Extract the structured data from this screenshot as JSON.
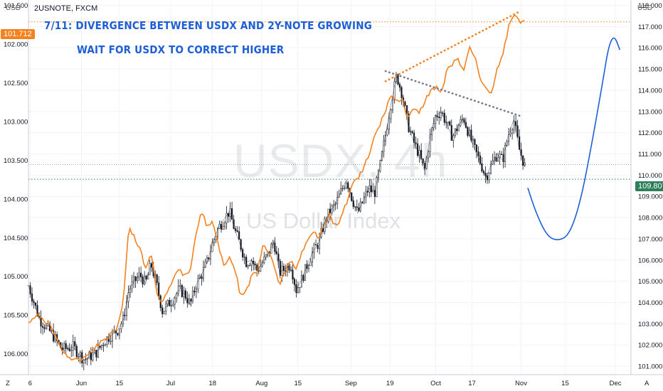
{
  "chart_data": {
    "type": "line",
    "symbol": "2USNOTE, FXCM",
    "watermark_main": "USDX, 4h",
    "watermark_sub": "US Dollar Index",
    "annotation_line1": "7/11: DIVERGENCE BETWEEN USDX AND 2Y-NOTE GROWING",
    "annotation_line2": "WAIT FOR USDX TO CORRECT HIGHER",
    "left_axis": {
      "unit": "USD",
      "inverted": true,
      "range": [
        101.43,
        106.27
      ],
      "ticks": [
        "101.500",
        "102.000",
        "102.500",
        "103.000",
        "103.500",
        "104.000",
        "104.500",
        "105.000",
        "105.500",
        "106.000"
      ],
      "last_value": "101.712"
    },
    "right_axis": {
      "unit": "USD",
      "range": [
        100.6,
        118.25
      ],
      "ticks": [
        "101.000",
        "102.000",
        "103.000",
        "104.000",
        "105.000",
        "106.000",
        "107.000",
        "108.000",
        "109.000",
        "110.000",
        "111.000",
        "112.000",
        "113.000",
        "114.000",
        "115.000",
        "116.000",
        "117.000",
        "118.000"
      ],
      "last_value": "109.807"
    },
    "x_axis": {
      "ticks": [
        "6",
        "Jun",
        "15",
        "Jul",
        "18",
        "Aug",
        "15",
        "Sep",
        "19",
        "Oct",
        "17",
        "Nov",
        "15",
        "Dec"
      ],
      "corner_left": "Z",
      "corner_right": "A"
    },
    "series": [
      {
        "axis": "right",
        "color": "#131722",
        "points": [
          [
            0,
            104.8
          ],
          [
            2,
            103.2
          ],
          [
            4,
            102.6
          ],
          [
            6,
            101.8
          ],
          [
            8,
            101.9
          ],
          [
            10,
            101.3
          ],
          [
            12,
            101.6
          ],
          [
            14,
            102.3
          ],
          [
            16,
            102.7
          ],
          [
            17,
            103.2
          ],
          [
            18,
            104.6
          ],
          [
            19,
            105.0
          ],
          [
            20,
            105.3
          ],
          [
            21,
            104.9
          ],
          [
            22,
            105.8
          ],
          [
            23,
            104.8
          ],
          [
            24,
            103.6
          ],
          [
            26,
            104.2
          ],
          [
            27,
            104.6
          ],
          [
            28,
            104.4
          ],
          [
            29,
            103.9
          ],
          [
            30,
            104.8
          ],
          [
            31,
            105.3
          ],
          [
            32,
            105.9
          ],
          [
            33,
            106.8
          ],
          [
            34,
            107.5
          ],
          [
            35,
            107.9
          ],
          [
            36,
            108.3
          ],
          [
            37,
            107.4
          ],
          [
            38,
            106.7
          ],
          [
            39,
            105.9
          ],
          [
            40,
            106.0
          ],
          [
            41,
            105.5
          ],
          [
            42,
            105.9
          ],
          [
            43,
            106.3
          ],
          [
            44,
            106.9
          ],
          [
            45,
            105.4
          ],
          [
            46,
            105.6
          ],
          [
            47,
            105.8
          ],
          [
            48,
            104.6
          ],
          [
            49,
            105.1
          ],
          [
            50,
            105.8
          ],
          [
            51,
            106.4
          ],
          [
            52,
            106.8
          ],
          [
            53,
            107.7
          ],
          [
            54,
            108.3
          ],
          [
            55,
            108.6
          ],
          [
            56,
            109.2
          ],
          [
            57,
            109.8
          ],
          [
            58,
            108.9
          ],
          [
            59,
            108.2
          ],
          [
            60,
            108.8
          ],
          [
            61,
            109.4
          ],
          [
            62,
            109.1
          ],
          [
            63,
            110.4
          ],
          [
            64,
            111.9
          ],
          [
            65,
            113.4
          ],
          [
            66,
            114.7
          ],
          [
            67,
            113.8
          ],
          [
            68,
            112.4
          ],
          [
            69,
            111.6
          ],
          [
            70,
            111.0
          ],
          [
            71,
            110.2
          ],
          [
            72,
            111.8
          ],
          [
            73,
            112.8
          ],
          [
            74,
            113.0
          ],
          [
            75,
            112.4
          ],
          [
            76,
            111.8
          ],
          [
            77,
            112.3
          ],
          [
            78,
            112.7
          ],
          [
            79,
            111.9
          ],
          [
            80,
            111.2
          ],
          [
            81,
            110.6
          ],
          [
            82,
            109.9
          ],
          [
            83,
            110.5
          ],
          [
            84,
            111.0
          ],
          [
            85,
            110.7
          ],
          [
            86,
            111.9
          ],
          [
            87,
            112.6
          ],
          [
            88,
            111.2
          ],
          [
            89,
            110.4
          ]
        ]
      },
      {
        "axis": "left",
        "color": "#f5821f",
        "points": [
          [
            0,
            105.6
          ],
          [
            2,
            105.5
          ],
          [
            4,
            105.65
          ],
          [
            6,
            105.95
          ],
          [
            8,
            106.1
          ],
          [
            10,
            106.05
          ],
          [
            12,
            105.9
          ],
          [
            14,
            105.8
          ],
          [
            16,
            105.65
          ],
          [
            17,
            105.3
          ],
          [
            18,
            104.35
          ],
          [
            19,
            104.5
          ],
          [
            20,
            104.65
          ],
          [
            21,
            104.9
          ],
          [
            22,
            104.7
          ],
          [
            23,
            105.2
          ],
          [
            24,
            105.35
          ],
          [
            26,
            105.05
          ],
          [
            27,
            104.9
          ],
          [
            28,
            105.0
          ],
          [
            29,
            104.9
          ],
          [
            30,
            104.45
          ],
          [
            31,
            104.15
          ],
          [
            32,
            104.35
          ],
          [
            33,
            104.3
          ],
          [
            34,
            104.6
          ],
          [
            35,
            104.85
          ],
          [
            36,
            104.75
          ],
          [
            37,
            104.9
          ],
          [
            38,
            105.25
          ],
          [
            39,
            105.2
          ],
          [
            40,
            105.0
          ],
          [
            41,
            104.95
          ],
          [
            42,
            104.6
          ],
          [
            43,
            104.7
          ],
          [
            44,
            104.85
          ],
          [
            45,
            105.1
          ],
          [
            46,
            104.95
          ],
          [
            47,
            104.8
          ],
          [
            48,
            104.9
          ],
          [
            49,
            104.7
          ],
          [
            50,
            104.55
          ],
          [
            51,
            104.4
          ],
          [
            52,
            104.5
          ],
          [
            53,
            104.3
          ],
          [
            54,
            104.2
          ],
          [
            55,
            104.35
          ],
          [
            56,
            104.25
          ],
          [
            57,
            104.05
          ],
          [
            58,
            103.8
          ],
          [
            59,
            103.75
          ],
          [
            60,
            103.6
          ],
          [
            61,
            103.45
          ],
          [
            62,
            103.2
          ],
          [
            63,
            103.05
          ],
          [
            64,
            102.85
          ],
          [
            65,
            102.65
          ],
          [
            66,
            102.75
          ],
          [
            67,
            102.7
          ],
          [
            68,
            102.95
          ],
          [
            69,
            102.85
          ],
          [
            70,
            102.9
          ],
          [
            71,
            102.75
          ],
          [
            72,
            102.6
          ],
          [
            73,
            102.55
          ],
          [
            74,
            102.65
          ],
          [
            75,
            102.35
          ],
          [
            76,
            102.25
          ],
          [
            77,
            102.2
          ],
          [
            78,
            102.35
          ],
          [
            79,
            102.05
          ],
          [
            80,
            102.15
          ],
          [
            81,
            102.45
          ],
          [
            82,
            102.55
          ],
          [
            83,
            102.65
          ],
          [
            84,
            102.3
          ],
          [
            85,
            102.15
          ],
          [
            86,
            101.8
          ],
          [
            87,
            101.6
          ],
          [
            88,
            101.7
          ],
          [
            89,
            101.71
          ]
        ]
      }
    ],
    "trendlines": [
      {
        "axis": "left",
        "color": "#f5821f",
        "style": "dotted",
        "from": [
          64,
          102.48
        ],
        "to": [
          88,
          101.58
        ]
      },
      {
        "axis": "right",
        "color": "#787b86",
        "style": "dotted",
        "from": [
          64,
          114.9
        ],
        "to": [
          88,
          112.8
        ]
      }
    ],
    "projection": {
      "axis": "right",
      "color": "#1f5fd6",
      "points": [
        [
          89.5,
          109.4
        ],
        [
          91,
          108.2
        ],
        [
          93,
          107.1
        ],
        [
          95,
          106.9
        ],
        [
          97,
          107.2
        ],
        [
          99,
          108.8
        ],
        [
          101,
          111.5
        ],
        [
          103,
          114.5
        ],
        [
          104,
          116.1
        ],
        [
          105,
          116.6
        ],
        [
          106,
          115.9
        ]
      ]
    },
    "last_value_lines": [
      {
        "axis": "left",
        "value": 101.712,
        "style": "dotted",
        "color": "#f5821f"
      },
      {
        "axis": "right",
        "value": 109.807,
        "style": "dotted",
        "color": "#2e7d5b"
      }
    ],
    "grid": true,
    "legend": "none"
  }
}
